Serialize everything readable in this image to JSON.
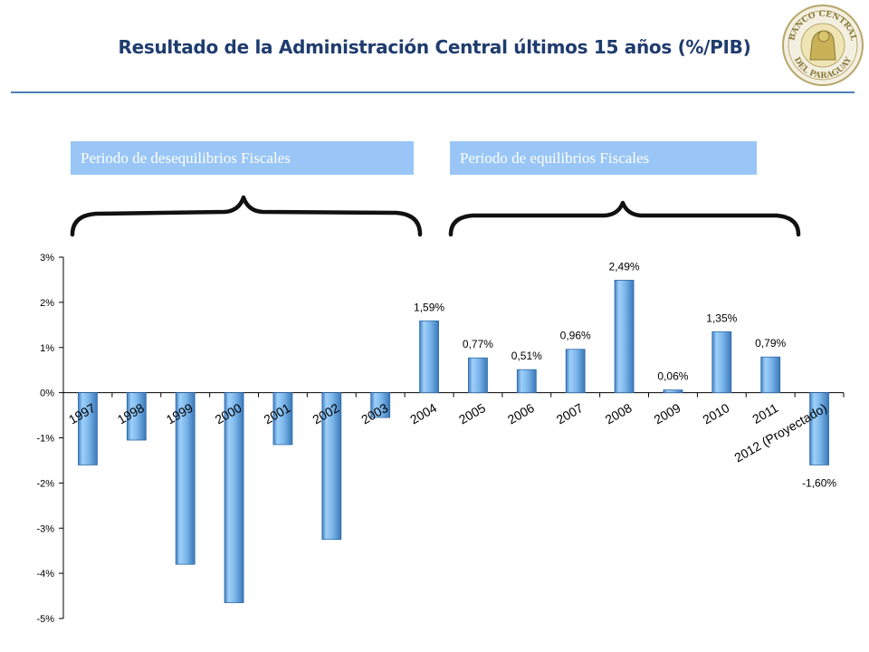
{
  "header": {
    "title": "Resultado de la Administración Central últimos 15 años (%/PIB)",
    "logo_top_text": "BANCO CENTRAL",
    "logo_bottom_text": "DEL PARAGUAY"
  },
  "periods": {
    "left_label": "Periodo de desequilibrios Fiscales",
    "right_label": "Periodo de equilibrios Fiscales"
  },
  "colors": {
    "title": "#1f3c6e",
    "rule": "#4f7fb6",
    "period_box": "#99c6f6",
    "bar_fill": "#8ec1ee",
    "bar_edge": "#3f7fc0"
  },
  "chart_data": {
    "type": "bar",
    "title": "",
    "xlabel": "",
    "ylabel": "",
    "ylim": [
      -5,
      3
    ],
    "yticks": [
      3,
      2,
      1,
      0,
      -1,
      -2,
      -3,
      -4,
      -5
    ],
    "ytick_labels": [
      "3%",
      "2%",
      "1%",
      "0%",
      "-1%",
      "-2%",
      "-3%",
      "-4%",
      "-5%"
    ],
    "categories": [
      "1997",
      "1998",
      "1999",
      "2000",
      "2001",
      "2002",
      "2003",
      "2004",
      "2005",
      "2006",
      "2007",
      "2008",
      "2009",
      "2010",
      "2011",
      "2012 (Proyectado)"
    ],
    "values": [
      -1.6,
      -1.05,
      -3.8,
      -4.65,
      -1.15,
      -3.25,
      -0.55,
      1.59,
      0.77,
      0.51,
      0.96,
      2.49,
      0.06,
      1.35,
      0.79,
      -1.6
    ],
    "data_labels": [
      "",
      "",
      "",
      "",
      "",
      "",
      "",
      "1,59%",
      "0,77%",
      "0,51%",
      "0,96%",
      "2,49%",
      "0,06%",
      "1,35%",
      "0,79%",
      "-1,60%"
    ],
    "grid": false,
    "legend": "none"
  }
}
